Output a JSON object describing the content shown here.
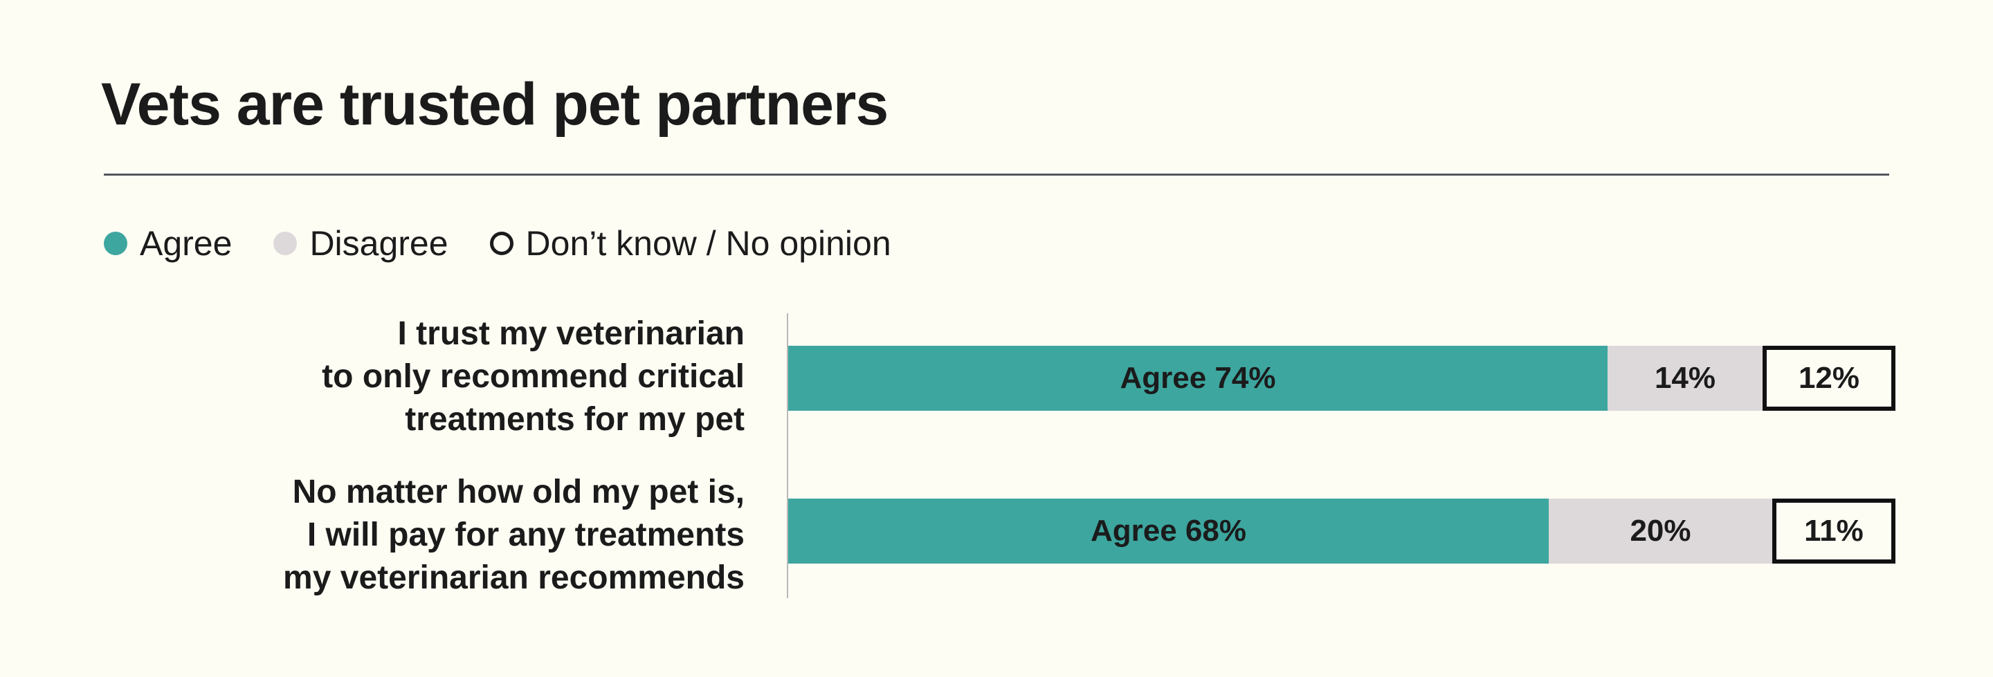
{
  "chart_data": {
    "type": "bar",
    "orientation": "horizontal",
    "stacked": true,
    "title": "Vets are trusted pet partners",
    "legend_position": "top-left",
    "grid": false,
    "series": [
      {
        "name": "Agree",
        "color": "#3da69f",
        "label_prefix": "Agree ",
        "values": [
          74,
          68
        ]
      },
      {
        "name": "Disagree",
        "color": "#ddd8da",
        "label_prefix": "",
        "values": [
          14,
          20
        ]
      },
      {
        "name": "Don’t know / No opinion",
        "color": "hollow",
        "label_prefix": "",
        "values": [
          12,
          11
        ]
      }
    ],
    "categories": [
      [
        "I trust my veterinarian",
        "to only recommend critical",
        "treatments for my pet"
      ],
      [
        "No matter how old my pet is,",
        "I will pay for any treatments",
        "my veterinarian recommends"
      ]
    ],
    "value_suffix": "%"
  }
}
